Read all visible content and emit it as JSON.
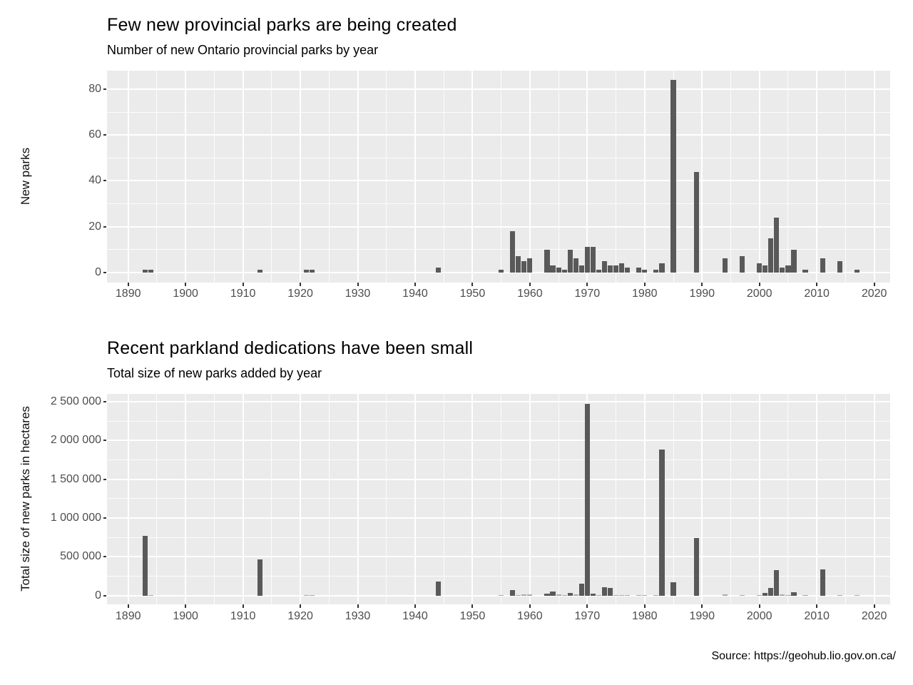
{
  "source": "Source: https://geohub.lio.gov.on.ca/",
  "chart_data": [
    {
      "type": "bar",
      "title": "Few new provincial parks are being created",
      "subtitle": "Number of new Ontario provincial parks by year",
      "ylabel": "New parks",
      "xlabel": "",
      "legend": "none",
      "grid": true,
      "panel_color": "#EBEBEB",
      "bar_color": "#595959",
      "xlim": [
        1886.3,
        2022.8
      ],
      "ylim": [
        0,
        88
      ],
      "x_ticks": [
        1890,
        1900,
        1910,
        1920,
        1930,
        1940,
        1950,
        1960,
        1970,
        1980,
        1990,
        2000,
        2010,
        2020
      ],
      "x_tick_labels": [
        "1890",
        "1900",
        "1910",
        "1920",
        "1930",
        "1940",
        "1950",
        "1960",
        "1970",
        "1980",
        "1990",
        "2000",
        "2010",
        "2020"
      ],
      "y_ticks": [
        0,
        20,
        40,
        60,
        80
      ],
      "y_tick_labels": [
        "0",
        "20",
        "40",
        "60",
        "80"
      ],
      "x": [
        1893,
        1894,
        1913,
        1921,
        1922,
        1944,
        1955,
        1957,
        1958,
        1959,
        1960,
        1963,
        1964,
        1965,
        1966,
        1967,
        1968,
        1969,
        1970,
        1971,
        1972,
        1973,
        1974,
        1975,
        1976,
        1977,
        1979,
        1980,
        1982,
        1983,
        1985,
        1989,
        1994,
        1997,
        2000,
        2001,
        2002,
        2003,
        2004,
        2005,
        2006,
        2008,
        2011,
        2014,
        2017
      ],
      "values": [
        1,
        1,
        1,
        1,
        1,
        2,
        1,
        18,
        7,
        5,
        6,
        10,
        3,
        2,
        1,
        10,
        6,
        3,
        11,
        11,
        1,
        5,
        3,
        3,
        4,
        2,
        2,
        1,
        1,
        4,
        84,
        44,
        6,
        7,
        4,
        3,
        15,
        24,
        2,
        3,
        10,
        1,
        6,
        5,
        1
      ]
    },
    {
      "type": "bar",
      "title": "Recent parkland dedications have been small",
      "subtitle": "Total size of new parks added by year",
      "ylabel": "Total size of new parks in hectares",
      "xlabel": "",
      "legend": "none",
      "grid": true,
      "panel_color": "#EBEBEB",
      "bar_color": "#595959",
      "xlim": [
        1886.3,
        2022.8
      ],
      "ylim": [
        0,
        2600000
      ],
      "x_ticks": [
        1890,
        1900,
        1910,
        1920,
        1930,
        1940,
        1950,
        1960,
        1970,
        1980,
        1990,
        2000,
        2010,
        2020
      ],
      "x_tick_labels": [
        "1890",
        "1900",
        "1910",
        "1920",
        "1930",
        "1940",
        "1950",
        "1960",
        "1970",
        "1980",
        "1990",
        "2000",
        "2010",
        "2020"
      ],
      "y_ticks": [
        0,
        500000,
        1000000,
        1500000,
        2000000,
        2500000
      ],
      "y_tick_labels": [
        "0",
        "500 000",
        "1 000 000",
        "1 500 000",
        "2 000 000",
        "2 500 000"
      ],
      "x": [
        1893,
        1894,
        1913,
        1921,
        1922,
        1944,
        1955,
        1957,
        1958,
        1959,
        1960,
        1963,
        1964,
        1965,
        1966,
        1967,
        1968,
        1969,
        1970,
        1971,
        1972,
        1973,
        1974,
        1975,
        1976,
        1977,
        1979,
        1980,
        1982,
        1983,
        1985,
        1989,
        1994,
        1997,
        2000,
        2001,
        2002,
        2003,
        2004,
        2005,
        2006,
        2008,
        2011,
        2014,
        2017
      ],
      "values": [
        770000,
        5000,
        470000,
        3000,
        3000,
        180000,
        2000,
        75000,
        10000,
        15000,
        15000,
        25000,
        50000,
        12000,
        5000,
        37000,
        12000,
        150000,
        2470000,
        25000,
        5000,
        110000,
        100000,
        5000,
        8000,
        5000,
        5000,
        5000,
        5000,
        1880000,
        170000,
        740000,
        15000,
        3000,
        2000,
        35000,
        100000,
        330000,
        20000,
        6000,
        45000,
        2000,
        340000,
        10000,
        1000
      ]
    }
  ]
}
